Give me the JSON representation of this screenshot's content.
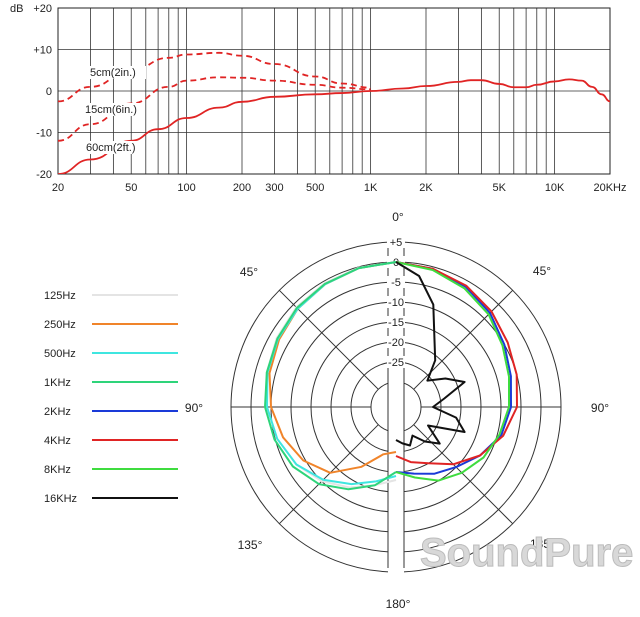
{
  "watermark": "SoundPure",
  "chart_data": [
    {
      "type": "line",
      "title": "",
      "xlabel": "",
      "ylabel": "dB",
      "x_scale": "log",
      "xlim": [
        20,
        20000
      ],
      "ylim": [
        -20,
        20
      ],
      "grid": true,
      "x_ticks": [
        {
          "value": 20,
          "label": "20"
        },
        {
          "value": 50,
          "label": "50"
        },
        {
          "value": 100,
          "label": "100"
        },
        {
          "value": 200,
          "label": "200"
        },
        {
          "value": 300,
          "label": "300"
        },
        {
          "value": 500,
          "label": "500"
        },
        {
          "value": 1000,
          "label": "1K"
        },
        {
          "value": 2000,
          "label": "2K"
        },
        {
          "value": 5000,
          "label": "5K"
        },
        {
          "value": 10000,
          "label": "10K"
        },
        {
          "value": 20000,
          "label": "20KHz"
        }
      ],
      "y_ticks": [
        {
          "value": 20,
          "label": "+20"
        },
        {
          "value": 10,
          "label": "+10"
        },
        {
          "value": 0,
          "label": "0"
        },
        {
          "value": -10,
          "label": "-10"
        },
        {
          "value": -20,
          "label": "-20"
        }
      ],
      "series": [
        {
          "name": "5cm(2in.)",
          "style": "dashed",
          "color": "#e02424",
          "x": [
            20,
            30,
            50,
            80,
            100,
            150,
            200,
            300,
            500,
            700,
            1000
          ],
          "y": [
            -2.5,
            1,
            5,
            8,
            8.8,
            9.2,
            8.5,
            6.5,
            3.5,
            1.8,
            0.8
          ]
        },
        {
          "name": "15cm(6in.)",
          "style": "dashed",
          "color": "#e02424",
          "x": [
            20,
            30,
            50,
            80,
            100,
            150,
            200,
            300,
            500,
            700,
            1000
          ],
          "y": [
            -12,
            -8,
            -3,
            1,
            2.5,
            3.3,
            3.2,
            2.5,
            1.5,
            0.8,
            0.4
          ]
        },
        {
          "name": "60cm(2ft.)",
          "style": "solid",
          "color": "#e02424",
          "x": [
            20,
            30,
            50,
            70,
            100,
            150,
            200,
            300,
            500,
            700,
            1000,
            1500,
            2000,
            3000,
            3500,
            4000,
            5000,
            6000,
            7000,
            8000,
            10000,
            12000,
            14000,
            16000,
            18000,
            20000
          ],
          "y": [
            -20,
            -16.5,
            -12,
            -9.2,
            -6.5,
            -4,
            -2.6,
            -1.4,
            -0.8,
            -0.5,
            0,
            0.6,
            1.2,
            2.2,
            2.6,
            2.6,
            1.7,
            0.9,
            0.9,
            1.5,
            2.3,
            2.8,
            2.5,
            1,
            -0.8,
            -2.5
          ]
        }
      ]
    },
    {
      "type": "polar",
      "title": "",
      "r_ticks": [
        {
          "value": 5,
          "label": "+5"
        },
        {
          "value": 0,
          "label": "0"
        },
        {
          "value": -5,
          "label": "-5"
        },
        {
          "value": -10,
          "label": "-10"
        },
        {
          "value": -15,
          "label": "-15"
        },
        {
          "value": -20,
          "label": "-20"
        },
        {
          "value": -25,
          "label": "-25"
        }
      ],
      "rlim": [
        -30,
        5
      ],
      "angle_labels": [
        {
          "angle": 0,
          "label": "0°"
        },
        {
          "angle": 45,
          "label": "45°"
        },
        {
          "angle": 90,
          "label": "90°"
        },
        {
          "angle": 135,
          "label": "135"
        },
        {
          "angle": 180,
          "label": "180°"
        },
        {
          "angle": 225,
          "label": "135°"
        },
        {
          "angle": 270,
          "label": "90°"
        },
        {
          "angle": 315,
          "label": "45°"
        }
      ],
      "legend_position": "left",
      "series": [
        {
          "name": "125Hz",
          "color": "#e4e4e4",
          "side": "left",
          "angles": [
            0,
            15,
            30,
            45,
            60,
            75,
            90,
            105,
            120,
            135,
            150,
            165,
            180
          ],
          "values": [
            0,
            -0.2,
            -0.5,
            -1,
            -1.8,
            -2.8,
            -4,
            -5.5,
            -7.5,
            -10,
            -13,
            -16,
            -18
          ]
        },
        {
          "name": "250Hz",
          "color": "#f0842a",
          "side": "left",
          "angles": [
            0,
            15,
            30,
            45,
            60,
            75,
            90,
            105,
            120,
            135,
            150,
            165,
            180
          ],
          "values": [
            0,
            -0.3,
            -0.8,
            -1.5,
            -2.5,
            -3.5,
            -5,
            -7,
            -9.5,
            -13,
            -19,
            -24,
            -25
          ]
        },
        {
          "name": "500Hz",
          "color": "#3fe6e0",
          "side": "left",
          "angles": [
            0,
            15,
            30,
            45,
            60,
            75,
            90,
            105,
            120,
            135,
            150,
            165,
            180
          ],
          "values": [
            0,
            -0.3,
            -0.8,
            -1.5,
            -2.2,
            -3,
            -4,
            -5.5,
            -7.5,
            -10.5,
            -14,
            -17,
            -19
          ]
        },
        {
          "name": "1KHz",
          "color": "#2ed47a",
          "side": "left",
          "angles": [
            0,
            15,
            30,
            45,
            60,
            75,
            90,
            105,
            120,
            135,
            150,
            165,
            180
          ],
          "values": [
            0,
            -0.3,
            -0.7,
            -1.2,
            -2,
            -2.8,
            -3.5,
            -4.8,
            -6.5,
            -9,
            -12.5,
            -16,
            -20
          ]
        },
        {
          "name": "2KHz",
          "color": "#1a3ad8",
          "side": "right",
          "angles": [
            0,
            15,
            30,
            45,
            60,
            75,
            90,
            105,
            120,
            135,
            150,
            165,
            180
          ],
          "values": [
            0,
            -0.5,
            -1.5,
            -3,
            -5,
            -6.5,
            -7.5,
            -9,
            -12,
            -15,
            -17,
            -19,
            -20
          ]
        },
        {
          "name": "4KHz",
          "color": "#e02424",
          "side": "right",
          "angles": [
            0,
            15,
            30,
            45,
            60,
            75,
            90,
            105,
            120,
            135,
            150,
            165,
            180
          ],
          "values": [
            0,
            -0.5,
            -1.2,
            -2.5,
            -4,
            -5,
            -6,
            -8.5,
            -12,
            -16,
            -20,
            -22,
            -24
          ]
        },
        {
          "name": "8KHz",
          "color": "#3fdc3f",
          "side": "right",
          "angles": [
            0,
            15,
            30,
            45,
            60,
            75,
            90,
            105,
            120,
            135,
            150,
            165,
            180
          ],
          "values": [
            0,
            -0.8,
            -2,
            -3.5,
            -5.5,
            -7,
            -8,
            -9.5,
            -11,
            -13,
            -15,
            -18,
            -20
          ]
        },
        {
          "name": "16KHz",
          "color": "#111111",
          "side": "right",
          "angles": [
            0,
            10,
            20,
            30,
            40,
            50,
            60,
            70,
            80,
            90,
            100,
            110,
            120,
            130,
            140,
            150,
            160,
            170,
            180
          ],
          "values": [
            0,
            -3,
            -9,
            -17,
            -21,
            -26,
            -22,
            -18,
            -24,
            -27,
            -21,
            -18,
            -27,
            -22,
            -25,
            -28,
            -26,
            -27,
            -28
          ]
        }
      ]
    }
  ]
}
